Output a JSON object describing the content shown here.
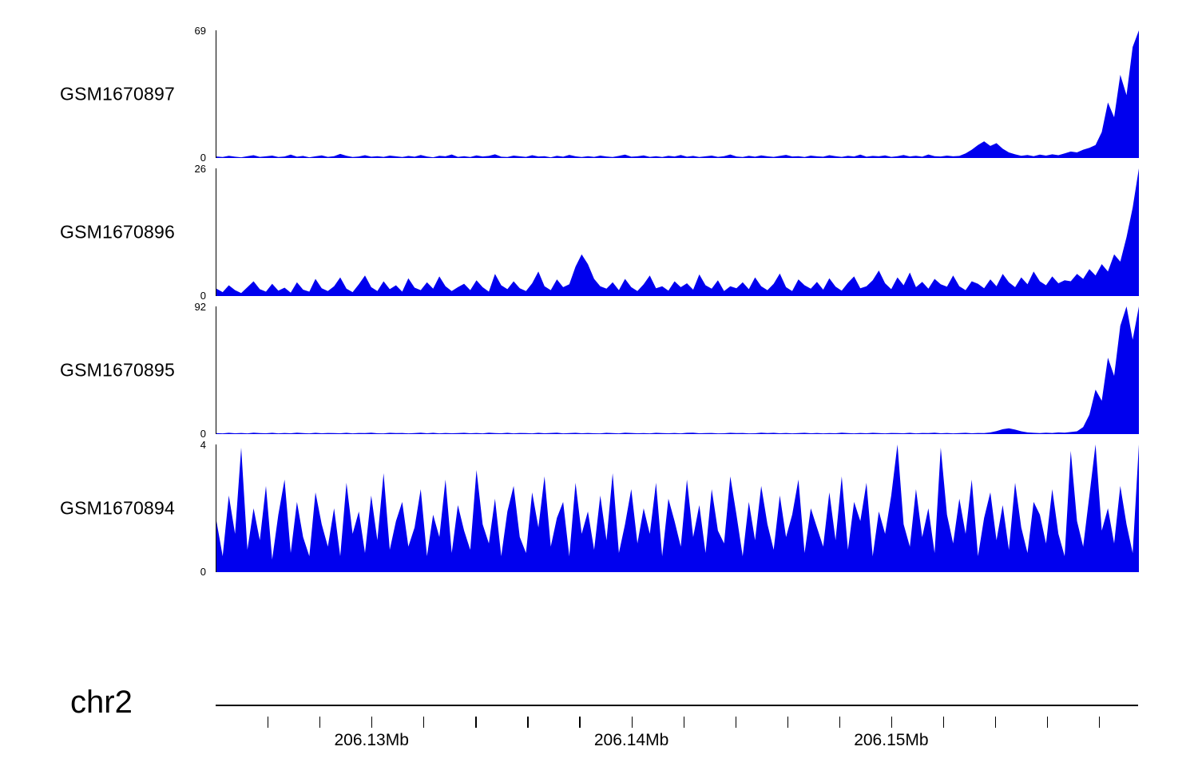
{
  "figure": {
    "track_fill": "#0000EE",
    "axis": {
      "chromosome": "chr2",
      "start_mb": 206.124,
      "end_mb": 206.1595,
      "first_tick_mb": 206.126,
      "minor_tick_step_mb": 0.002,
      "labels": [
        {
          "text": "206.13Mb",
          "mb": 206.13
        },
        {
          "text": "206.14Mb",
          "mb": 206.14
        },
        {
          "text": "206.15Mb",
          "mb": 206.15
        }
      ]
    }
  },
  "chart_data": [
    {
      "type": "area",
      "name": "GSM1670897",
      "ylim": [
        0,
        69
      ],
      "x_range_mb": [
        206.124,
        206.1595
      ],
      "values": [
        0.8,
        0.5,
        1.2,
        0.7,
        0.4,
        1.0,
        1.5,
        0.6,
        0.9,
        1.3,
        0.5,
        0.8,
        1.8,
        0.7,
        1.1,
        0.4,
        0.9,
        1.4,
        0.6,
        1.0,
        2.2,
        1.2,
        0.5,
        0.8,
        1.5,
        0.7,
        1.0,
        0.6,
        1.3,
        0.9,
        0.5,
        1.1,
        0.7,
        1.6,
        0.8,
        0.4,
        1.2,
        0.9,
        1.9,
        0.6,
        1.0,
        0.5,
        1.4,
        0.8,
        1.1,
        2.0,
        0.7,
        0.5,
        1.3,
        0.9,
        0.6,
        1.5,
        0.8,
        1.0,
        0.4,
        1.2,
        0.7,
        1.7,
        0.9,
        0.5,
        1.0,
        0.6,
        1.3,
        0.8,
        0.5,
        1.1,
        1.8,
        0.7,
        0.9,
        1.4,
        0.6,
        1.0,
        0.5,
        1.2,
        0.8,
        1.6,
        0.7,
        1.1,
        0.5,
        0.9,
        1.3,
        0.6,
        1.0,
        1.9,
        0.8,
        0.5,
        1.2,
        0.7,
        1.4,
        0.9,
        0.6,
        1.1,
        1.7,
        0.8,
        1.0,
        0.5,
        1.3,
        0.9,
        0.7,
        1.5,
        1.0,
        0.6,
        1.2,
        0.8,
        1.8,
        0.7,
        1.1,
        0.9,
        1.4,
        0.6,
        1.0,
        1.6,
        0.8,
        1.2,
        0.7,
        1.9,
        1.0,
        0.8,
        1.3,
        0.9,
        1.1,
        2.5,
        4.5,
        7,
        9,
        6.5,
        8,
        5,
        3,
        2,
        1.2,
        1.6,
        1.0,
        1.8,
        1.3,
        2.0,
        1.5,
        2.5,
        3.5,
        3.0,
        4.5,
        5.5,
        7,
        14,
        30,
        22,
        45,
        34,
        60,
        69
      ]
    },
    {
      "type": "area",
      "name": "GSM1670896",
      "ylim": [
        0,
        26
      ],
      "x_range_mb": [
        206.124,
        206.1595
      ],
      "values": [
        1.5,
        0.8,
        2.2,
        1.2,
        0.6,
        1.8,
        3.0,
        1.4,
        0.9,
        2.5,
        1.1,
        1.7,
        0.7,
        2.8,
        1.3,
        0.9,
        3.5,
        1.6,
        1.0,
        2.0,
        3.8,
        1.5,
        0.8,
        2.4,
        4.2,
        1.8,
        1.0,
        3.0,
        1.4,
        2.2,
        0.9,
        3.6,
        1.7,
        1.2,
        2.8,
        1.5,
        4.0,
        2.0,
        1.0,
        1.8,
        2.5,
        1.2,
        3.2,
        1.8,
        0.9,
        4.5,
        2.2,
        1.4,
        3.0,
        1.6,
        1.0,
        2.6,
        5.0,
        2.0,
        1.2,
        3.4,
        1.8,
        2.4,
        6.0,
        8.5,
        6.5,
        3.5,
        2.0,
        1.5,
        2.8,
        1.2,
        3.5,
        1.8,
        1.0,
        2.4,
        4.2,
        1.6,
        2.0,
        1.1,
        3.0,
        1.8,
        2.6,
        1.3,
        4.4,
        2.2,
        1.5,
        3.2,
        1.0,
        2.0,
        1.6,
        2.8,
        1.4,
        3.8,
        2.0,
        1.2,
        2.5,
        4.6,
        1.8,
        1.0,
        3.4,
        2.2,
        1.5,
        2.9,
        1.3,
        3.6,
        1.9,
        1.1,
        2.7,
        4.0,
        1.6,
        2.0,
        3.2,
        5.2,
        2.6,
        1.4,
        3.8,
        2.2,
        4.8,
        1.8,
        2.9,
        1.5,
        3.5,
        2.4,
        1.9,
        4.2,
        2.0,
        1.2,
        3.0,
        2.5,
        1.6,
        3.4,
        2.0,
        4.5,
        2.8,
        1.8,
        3.8,
        2.4,
        5.0,
        3.0,
        2.2,
        4.0,
        2.6,
        3.2,
        3.0,
        4.5,
        3.5,
        5.5,
        4.2,
        6.5,
        5.0,
        8.5,
        7.0,
        12,
        18,
        26
      ]
    },
    {
      "type": "area",
      "name": "GSM1670895",
      "ylim": [
        0,
        92
      ],
      "x_range_mb": [
        206.124,
        206.1595
      ],
      "values": [
        0.7,
        0.5,
        0.9,
        0.6,
        0.8,
        0.5,
        1.0,
        0.7,
        0.6,
        0.9,
        0.5,
        0.8,
        0.6,
        1.0,
        0.7,
        0.5,
        0.9,
        0.6,
        0.8,
        0.7,
        0.6,
        0.9,
        0.5,
        0.8,
        0.7,
        1.0,
        0.6,
        0.5,
        0.9,
        0.7,
        0.8,
        0.5,
        0.7,
        1.0,
        0.6,
        0.9,
        0.5,
        0.8,
        0.6,
        0.7,
        0.9,
        0.6,
        0.8,
        0.5,
        1.0,
        0.7,
        0.6,
        0.9,
        0.5,
        0.8,
        0.7,
        0.5,
        0.9,
        0.6,
        0.8,
        1.0,
        0.5,
        0.7,
        0.9,
        0.6,
        0.8,
        0.6,
        0.5,
        0.9,
        0.7,
        0.5,
        1.0,
        0.8,
        0.6,
        0.7,
        0.5,
        0.9,
        0.7,
        0.6,
        0.8,
        0.5,
        0.9,
        1.0,
        0.6,
        0.7,
        0.8,
        0.5,
        0.6,
        0.9,
        0.7,
        0.8,
        0.5,
        0.6,
        1.0,
        0.7,
        0.9,
        0.6,
        0.8,
        0.5,
        0.7,
        0.9,
        0.6,
        0.8,
        0.5,
        0.7,
        0.6,
        1.0,
        0.7,
        0.5,
        0.8,
        0.6,
        0.9,
        0.7,
        0.5,
        0.8,
        0.7,
        0.6,
        0.9,
        0.5,
        0.8,
        0.7,
        1.0,
        0.6,
        0.8,
        0.5,
        0.7,
        0.9,
        0.6,
        0.8,
        0.7,
        1.2,
        2.2,
        3.5,
        4.2,
        3.2,
        2.0,
        1.2,
        0.9,
        0.7,
        1.0,
        0.8,
        1.2,
        1.0,
        1.5,
        2.0,
        5,
        14,
        32,
        24,
        55,
        42,
        78,
        92,
        68,
        92
      ]
    },
    {
      "type": "area",
      "name": "GSM1670894",
      "ylim": [
        0,
        4
      ],
      "x_range_mb": [
        206.124,
        206.1595
      ],
      "values": [
        1.6,
        0.5,
        2.4,
        1.2,
        3.9,
        0.7,
        2.0,
        1.0,
        2.7,
        0.4,
        1.8,
        2.9,
        0.6,
        2.2,
        1.1,
        0.5,
        2.5,
        1.5,
        0.8,
        2.0,
        0.5,
        2.8,
        1.2,
        1.9,
        0.6,
        2.4,
        1.0,
        3.1,
        0.7,
        1.6,
        2.2,
        0.8,
        1.4,
        2.6,
        0.5,
        1.8,
        1.1,
        2.9,
        0.6,
        2.1,
        1.3,
        0.7,
        3.2,
        1.5,
        0.9,
        2.3,
        0.5,
        1.9,
        2.7,
        1.1,
        0.6,
        2.5,
        1.4,
        3.0,
        0.8,
        1.7,
        2.2,
        0.5,
        2.8,
        1.2,
        1.9,
        0.7,
        2.4,
        1.0,
        3.1,
        0.6,
        1.5,
        2.6,
        0.9,
        2.0,
        1.2,
        2.8,
        0.5,
        2.3,
        1.6,
        0.8,
        2.9,
        1.1,
        2.1,
        0.6,
        2.6,
        1.3,
        0.9,
        3.0,
        1.8,
        0.5,
        2.2,
        1.0,
        2.7,
        1.5,
        0.7,
        2.4,
        1.1,
        1.8,
        2.9,
        0.6,
        2.0,
        1.4,
        0.8,
        2.5,
        1.0,
        3.0,
        0.7,
        2.2,
        1.6,
        2.8,
        0.5,
        1.9,
        1.2,
        2.4,
        4.0,
        1.5,
        0.8,
        2.6,
        1.1,
        2.0,
        0.6,
        3.9,
        1.8,
        0.9,
        2.3,
        1.2,
        2.9,
        0.5,
        1.7,
        2.5,
        1.0,
        2.1,
        0.7,
        2.8,
        1.4,
        0.6,
        2.2,
        1.8,
        0.9,
        2.6,
        1.2,
        0.5,
        3.8,
        1.6,
        0.8,
        2.4,
        4.0,
        1.3,
        2.0,
        0.9,
        2.7,
        1.5,
        0.6,
        4.0
      ]
    }
  ]
}
